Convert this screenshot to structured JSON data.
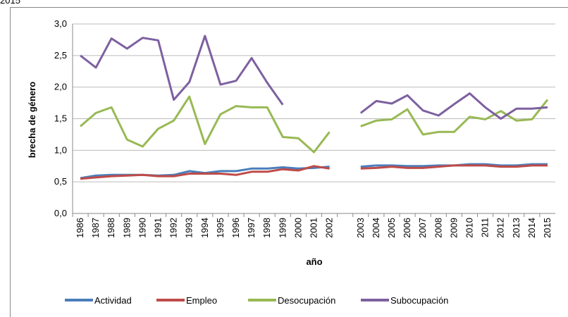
{
  "chart_data": {
    "type": "line",
    "title": "2015",
    "x_label": "año",
    "y_label": "brecha de género",
    "categories": [
      "1986",
      "1987",
      "1988",
      "1989",
      "1990",
      "1991",
      "1992",
      "1993",
      "1994",
      "1995",
      "1996",
      "1997",
      "1998",
      "1999",
      "2000",
      "2001",
      "2002",
      null,
      "2003",
      "2004",
      "2005",
      "2006",
      "2007",
      "2008",
      "2009",
      "2010",
      "2011",
      "2012",
      "2013",
      "2014",
      "2015"
    ],
    "series": [
      {
        "name": "Actividad",
        "color": "#4a7ebb",
        "values": [
          0.56,
          0.6,
          0.61,
          0.61,
          0.61,
          0.6,
          0.61,
          0.67,
          0.64,
          0.67,
          0.67,
          0.71,
          0.71,
          0.73,
          0.71,
          0.72,
          0.74,
          null,
          0.74,
          0.76,
          0.76,
          0.75,
          0.75,
          0.76,
          0.76,
          0.78,
          0.78,
          0.76,
          0.76,
          0.78,
          0.78
        ]
      },
      {
        "name": "Empleo",
        "color": "#be4b48",
        "values": [
          0.55,
          0.57,
          0.59,
          0.6,
          0.61,
          0.59,
          0.59,
          0.63,
          0.63,
          0.63,
          0.61,
          0.66,
          0.66,
          0.7,
          0.68,
          0.75,
          0.71,
          null,
          0.71,
          0.72,
          0.74,
          0.72,
          0.72,
          0.74,
          0.76,
          0.76,
          0.76,
          0.74,
          0.74,
          0.76,
          0.76
        ]
      },
      {
        "name": "Desocupación",
        "color": "#98b954",
        "values": [
          1.38,
          1.59,
          1.68,
          1.17,
          1.06,
          1.34,
          1.47,
          1.85,
          1.1,
          1.57,
          1.7,
          1.68,
          1.68,
          1.21,
          1.19,
          0.97,
          1.29,
          null,
          1.38,
          1.47,
          1.49,
          1.65,
          1.25,
          1.29,
          1.29,
          1.53,
          1.49,
          1.62,
          1.47,
          1.49,
          1.8
        ]
      },
      {
        "name": "Subocupación",
        "color": "#7d60a0",
        "values": [
          2.5,
          2.31,
          2.77,
          2.61,
          2.78,
          2.74,
          1.8,
          2.08,
          2.81,
          2.04,
          2.1,
          2.46,
          2.07,
          1.72,
          null,
          null,
          null,
          null,
          1.59,
          1.78,
          1.74,
          1.87,
          1.63,
          1.55,
          1.73,
          1.9,
          1.68,
          1.5,
          1.66,
          1.66,
          1.68
        ]
      }
    ],
    "ylim": [
      0,
      3
    ],
    "yticks": [
      {
        "value": 0,
        "label": "0,0"
      },
      {
        "value": 0.5,
        "label": "0,5"
      },
      {
        "value": 1,
        "label": "1,0"
      },
      {
        "value": 1.5,
        "label": "1,5"
      },
      {
        "value": 2,
        "label": "2,0"
      },
      {
        "value": 2.5,
        "label": "2,5"
      },
      {
        "value": 3,
        "label": "3,0"
      }
    ],
    "grid": true,
    "legend": "bottom"
  }
}
